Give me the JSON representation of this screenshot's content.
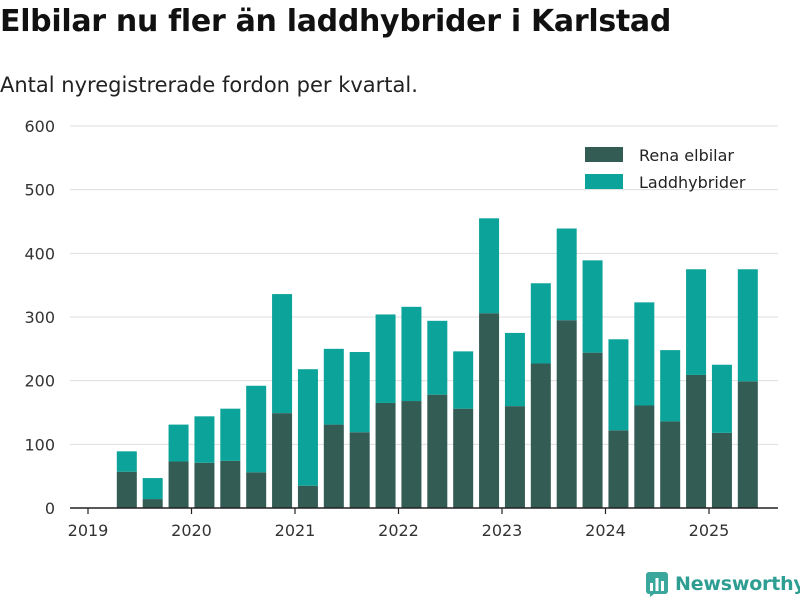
{
  "header": {
    "title": "Elbilar nu fler än laddhybrider i Karlstad",
    "subtitle": "Antal nyregistrerade fordon per kvartal."
  },
  "brand": {
    "name": "Newsworthy",
    "icon": "newsworthy-logo-icon",
    "color": "#2e9e93"
  },
  "chart_data": {
    "type": "bar",
    "stacked": true,
    "x": [
      "2019 Q2",
      "2019 Q3",
      "2019 Q4",
      "2020 Q1",
      "2020 Q2",
      "2020 Q3",
      "2020 Q4",
      "2021 Q1",
      "2021 Q2",
      "2021 Q3",
      "2021 Q4",
      "2022 Q1",
      "2022 Q2",
      "2022 Q3",
      "2022 Q4",
      "2023 Q1",
      "2023 Q2",
      "2023 Q3",
      "2023 Q4",
      "2024 Q1",
      "2024 Q2",
      "2024 Q3",
      "2024 Q4",
      "2025 Q1",
      "2025 Q2"
    ],
    "series": [
      {
        "name": "Rena elbilar",
        "color": "#335c55",
        "values": [
          57,
          14,
          73,
          71,
          74,
          56,
          149,
          35,
          131,
          119,
          165,
          168,
          178,
          156,
          306,
          160,
          227,
          295,
          244,
          122,
          161,
          136,
          209,
          118,
          199
        ]
      },
      {
        "name": "Laddhybrider",
        "color": "#0ca39a",
        "values": [
          32,
          33,
          58,
          73,
          82,
          136,
          187,
          183,
          119,
          126,
          139,
          148,
          116,
          90,
          149,
          115,
          126,
          144,
          145,
          143,
          162,
          112,
          166,
          107,
          176
        ]
      }
    ],
    "x_tick_labels": [
      "2019",
      "2020",
      "2021",
      "2022",
      "2023",
      "2024",
      "2025"
    ],
    "y_tick_labels": [
      "0",
      "100",
      "200",
      "300",
      "400",
      "500",
      "600"
    ],
    "ylim": [
      0,
      600
    ],
    "grid": true,
    "legend_position": "top-right"
  }
}
